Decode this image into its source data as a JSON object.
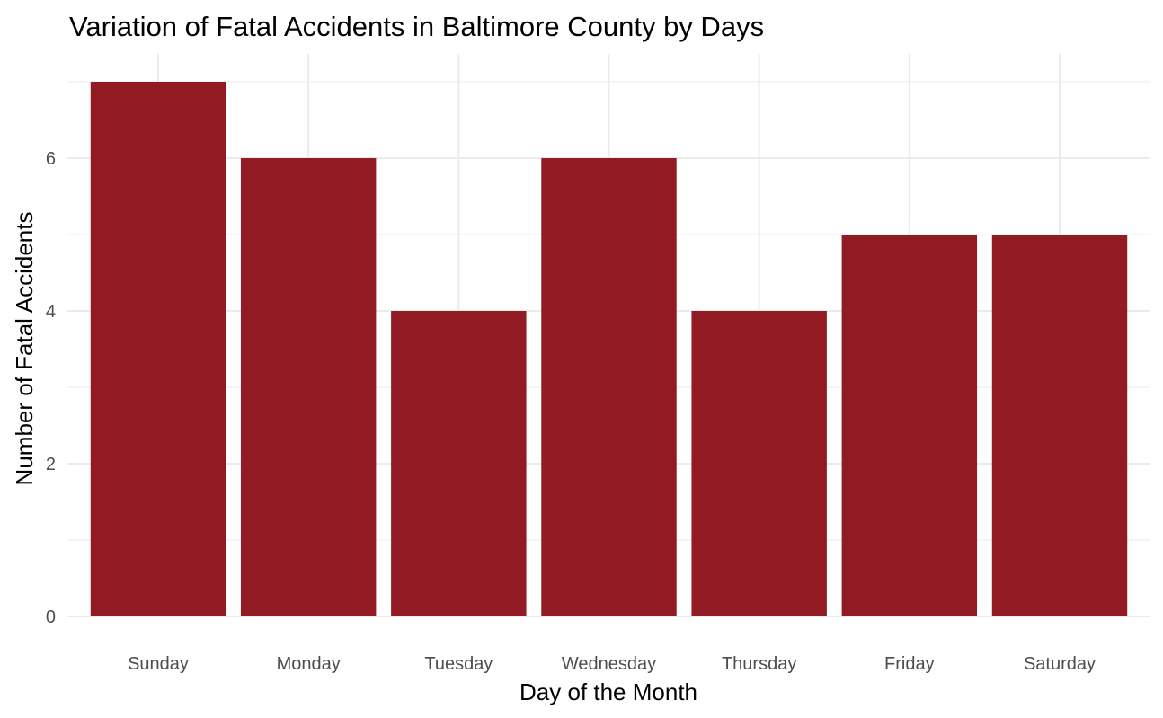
{
  "chart_data": {
    "type": "bar",
    "title": "Variation of Fatal Accidents in Baltimore County by Days",
    "xlabel": "Day of the Month",
    "ylabel": "Number of Fatal Accidents",
    "categories": [
      "Sunday",
      "Monday",
      "Tuesday",
      "Wednesday",
      "Thursday",
      "Friday",
      "Saturday"
    ],
    "values": [
      7,
      6,
      4,
      6,
      4,
      5,
      5
    ],
    "ylim": [
      0,
      7
    ],
    "yticks": [
      0,
      2,
      4,
      6
    ],
    "ytick_labels": [
      "0",
      "2",
      "4",
      "6"
    ],
    "grid": true,
    "bar_color": "#921B23",
    "grid_color": "#EBEBEB"
  }
}
